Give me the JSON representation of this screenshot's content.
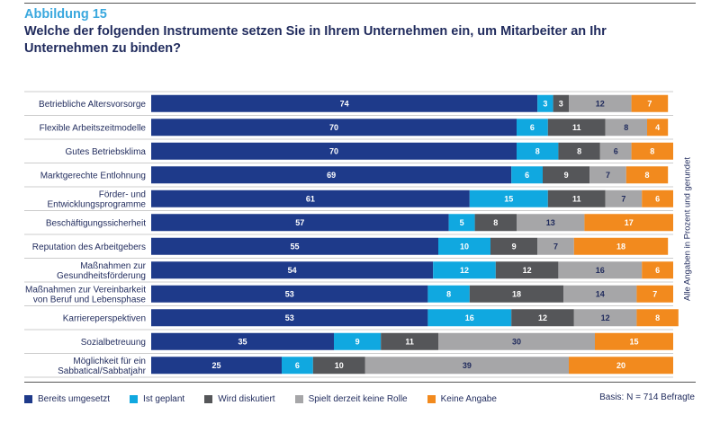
{
  "figure_label": "Abbildung 15",
  "title": "Welche der folgenden Instrumente setzen Sie in Ihrem Unternehmen ein, um Mitarbeiter an Ihr Unternehmen zu binden?",
  "side_note": "Alle Angaben in Prozent und gerundet",
  "basis": "Basis: N = 714 Befragte",
  "colors": {
    "Bereits umgesetzt": "#1e3a8a",
    "Ist geplant": "#10a8e0",
    "Wird diskutiert": "#555659",
    "Spielt derzeit keine Rolle": "#a6a6a8",
    "Keine Angabe": "#f28a1e"
  },
  "chart_data": {
    "type": "bar",
    "orientation": "horizontal",
    "stacked": true,
    "categories": [
      "Betriebliche Altersvorsorge",
      "Flexible Arbeitszeitmodelle",
      "Gutes Betriebsklima",
      "Marktgerechte Entlohnung",
      "Förder- und\nEntwicklungsprogramme",
      "Beschäftigungssicherheit",
      "Reputation des Arbeitgebers",
      "Maßnahmen zur\nGesundheitsförderung",
      "Maßnahmen zur Vereinbarkeit\nvon Beruf und Lebensphase",
      "Karriereperspektiven",
      "Sozialbetreuung",
      "Möglichkeit für ein\nSabbatical/Sabbatjahr"
    ],
    "series": [
      {
        "name": "Bereits umgesetzt",
        "values": [
          74,
          70,
          70,
          69,
          61,
          57,
          55,
          54,
          53,
          53,
          35,
          25
        ]
      },
      {
        "name": "Ist geplant",
        "values": [
          3,
          6,
          8,
          6,
          15,
          5,
          10,
          12,
          8,
          16,
          9,
          6
        ]
      },
      {
        "name": "Wird diskutiert",
        "values": [
          3,
          11,
          8,
          9,
          11,
          8,
          9,
          12,
          18,
          12,
          11,
          10
        ]
      },
      {
        "name": "Spielt derzeit keine Rolle",
        "values": [
          12,
          8,
          6,
          7,
          7,
          13,
          7,
          16,
          14,
          12,
          30,
          39
        ]
      },
      {
        "name": "Keine Angabe",
        "values": [
          7,
          4,
          8,
          8,
          6,
          17,
          18,
          6,
          7,
          8,
          15,
          20
        ]
      }
    ],
    "xlim": [
      0,
      100
    ],
    "grid": false,
    "legend_position": "bottom"
  }
}
